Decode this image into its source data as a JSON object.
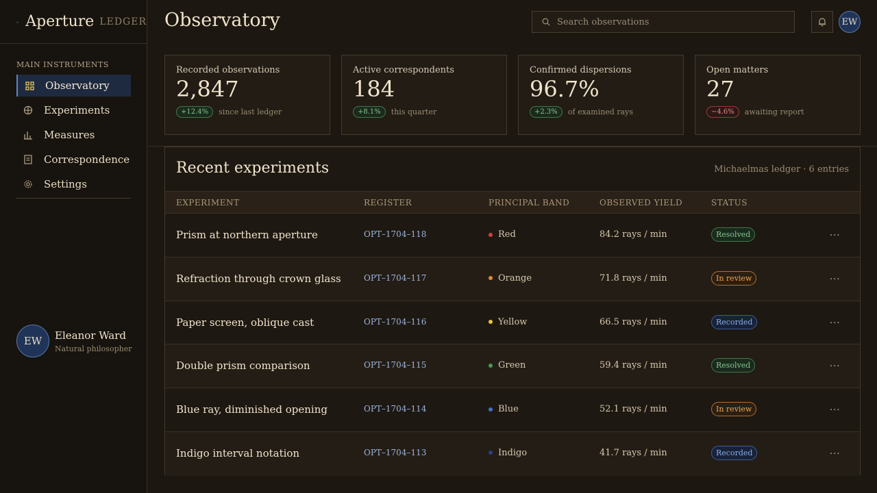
{
  "brand": {
    "name": "Aperture",
    "sub": "LEDGER"
  },
  "sidebar": {
    "section": "MAIN INSTRUMENTS",
    "items": [
      {
        "label": "Observatory",
        "icon": "grid-icon",
        "active": true
      },
      {
        "label": "Experiments",
        "icon": "crosshair-icon"
      },
      {
        "label": "Measures",
        "icon": "bar-chart-icon"
      },
      {
        "label": "Correspondence",
        "icon": "document-icon"
      },
      {
        "label": "Settings",
        "icon": "gear-icon"
      }
    ]
  },
  "user": {
    "initials": "EW",
    "name": "Eleanor Ward",
    "role": "Natural philosopher"
  },
  "header": {
    "title": "Observatory",
    "search_placeholder": "Search observations"
  },
  "stats": [
    {
      "label": "Recorded observations",
      "value": "2,847",
      "delta": "+12.4%",
      "trend": "up",
      "note": "since last ledger"
    },
    {
      "label": "Active correspondents",
      "value": "184",
      "delta": "+8.1%",
      "trend": "up",
      "note": "this quarter"
    },
    {
      "label": "Confirmed dispersions",
      "value": "96.7%",
      "delta": "+2.3%",
      "trend": "up",
      "note": "of examined rays"
    },
    {
      "label": "Open matters",
      "value": "27",
      "delta": "−4.6%",
      "trend": "down",
      "note": "awaiting report"
    }
  ],
  "table": {
    "title": "Recent experiments",
    "meta": "Michaelmas ledger · 6 entries",
    "columns": [
      "EXPERIMENT",
      "REGISTER",
      "PRINCIPAL BAND",
      "OBSERVED YIELD",
      "STATUS"
    ],
    "rows": [
      {
        "experiment": "Prism at northern aperture",
        "register": "OPT–1704–118",
        "band": "Red",
        "band_color": "#d2413a",
        "yield": "84.2 rays / min",
        "status": "Resolved",
        "status_kind": "resolved"
      },
      {
        "experiment": "Refraction through crown glass",
        "register": "OPT–1704–117",
        "band": "Orange",
        "band_color": "#e08a2e",
        "yield": "71.8 rays / min",
        "status": "In review",
        "status_kind": "review"
      },
      {
        "experiment": "Paper screen, oblique cast",
        "register": "OPT–1704–116",
        "band": "Yellow",
        "band_color": "#e6c43a",
        "yield": "66.5 rays / min",
        "status": "Recorded",
        "status_kind": "recorded"
      },
      {
        "experiment": "Double prism comparison",
        "register": "OPT–1704–115",
        "band": "Green",
        "band_color": "#4a9a4e",
        "yield": "59.4 rays / min",
        "status": "Resolved",
        "status_kind": "resolved"
      },
      {
        "experiment": "Blue ray, diminished opening",
        "register": "OPT–1704–114",
        "band": "Blue",
        "band_color": "#3f72c8",
        "yield": "52.1 rays / min",
        "status": "In review",
        "status_kind": "review"
      },
      {
        "experiment": "Indigo interval notation",
        "register": "OPT–1704–113",
        "band": "Indigo",
        "band_color": "#2e3f86",
        "yield": "41.7 rays / min",
        "status": "Recorded",
        "status_kind": "recorded"
      }
    ]
  }
}
